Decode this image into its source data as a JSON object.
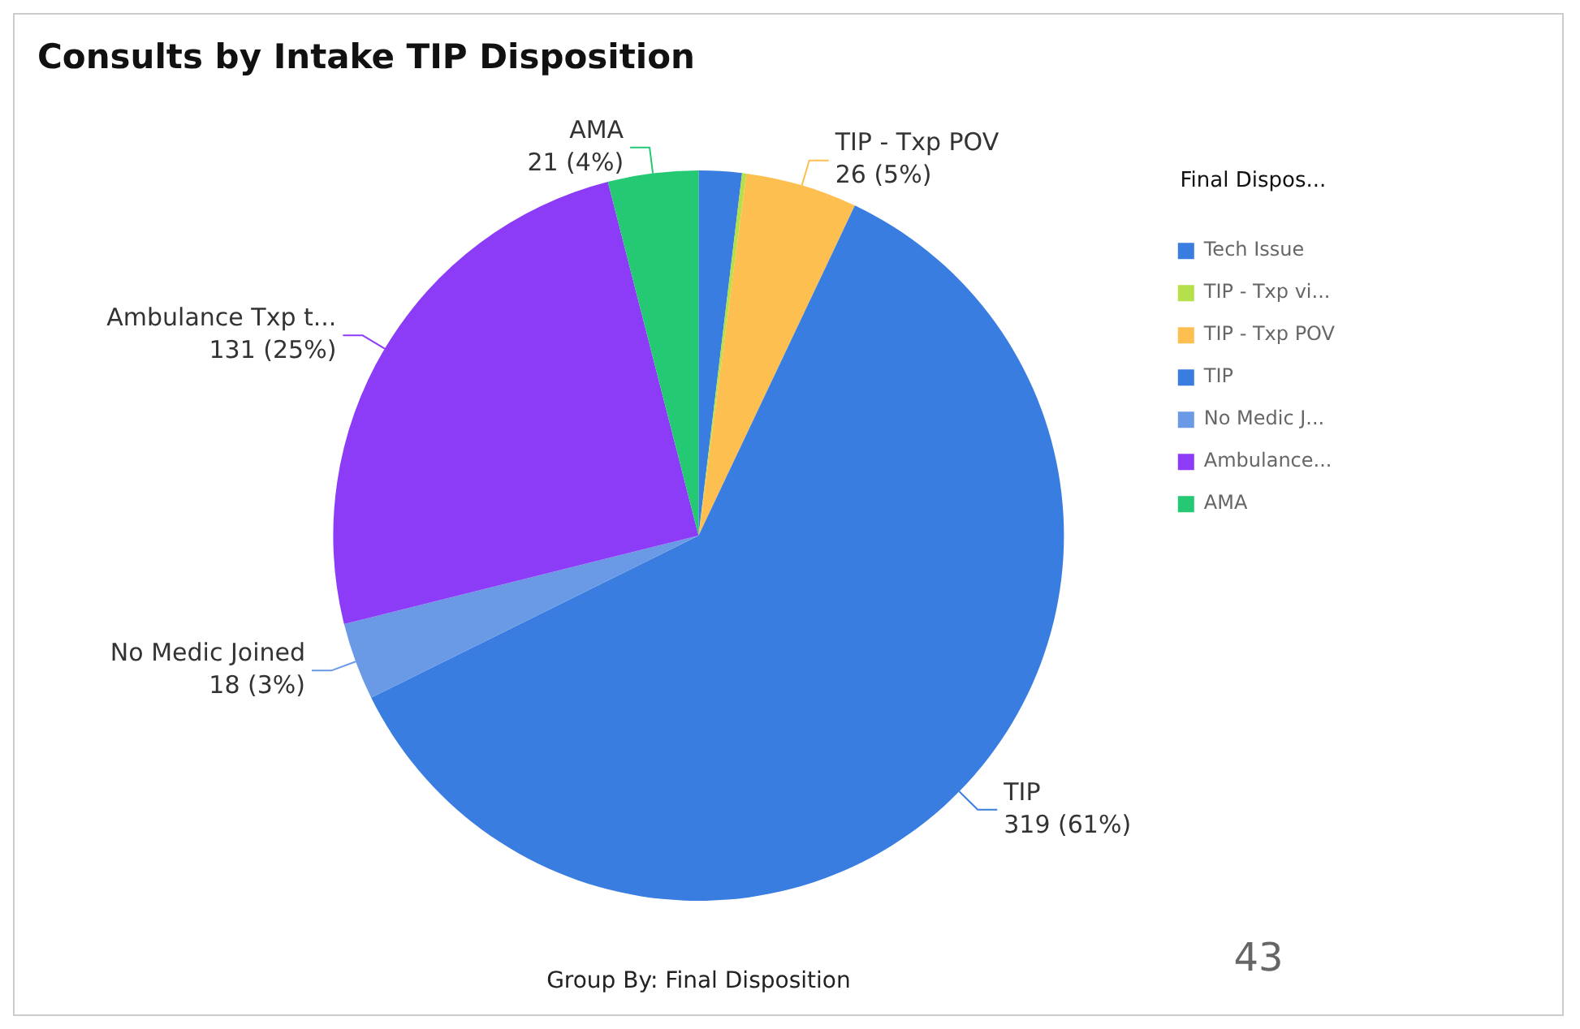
{
  "chart_data": {
    "type": "pie",
    "title": "Consults by Intake TIP Disposition",
    "legend_title": "Final Dispos...",
    "legend": "top right",
    "categories": [
      "Tech Issue",
      "TIP - Txp vi...",
      "TIP - Txp POV",
      "TIP",
      "No Medic J...",
      "Ambulance...",
      "AMA"
    ],
    "values": [
      10,
      1,
      26,
      319,
      18,
      131,
      21
    ],
    "colors": [
      "#3a7de0",
      "#b5e04a",
      "#fdbf4f",
      "#3a7de0",
      "#6a9ae6",
      "#8c3cf6",
      "#25c873"
    ],
    "value_labels": [
      null,
      null,
      "TIP - Txp POV\n26 (5%)",
      "TIP\n319 (61%)",
      "No Medic Joined\n18 (3%)",
      "Ambulance Txp t...\n131 (25%)",
      "AMA\n21 (4%)"
    ],
    "annotations": [
      "Group By: Final Disposition",
      "43"
    ]
  }
}
